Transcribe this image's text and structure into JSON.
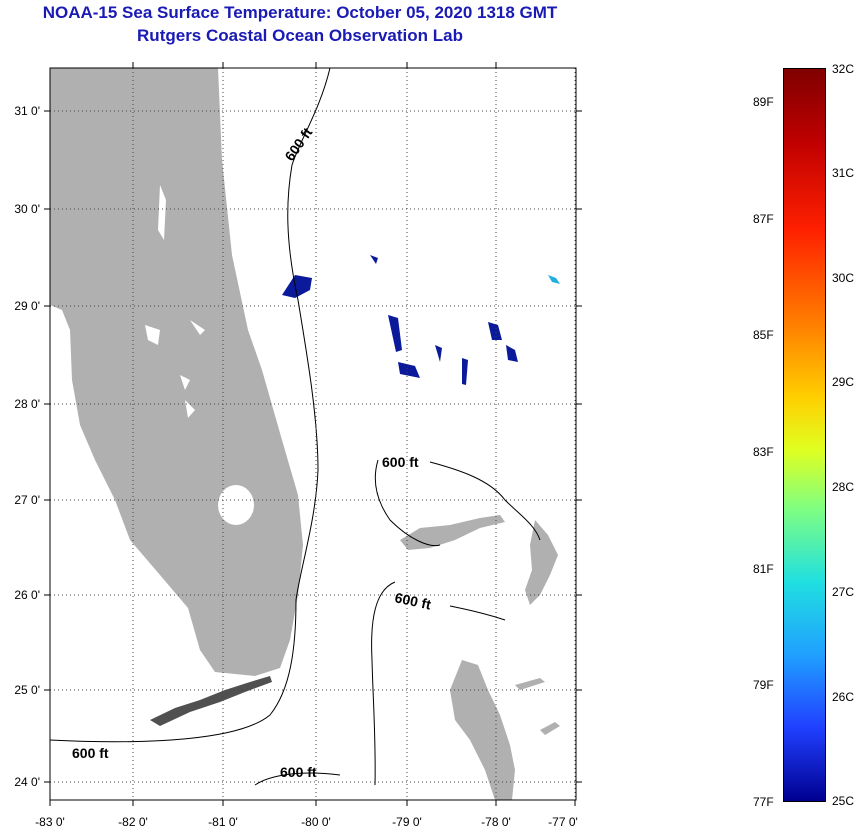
{
  "title": {
    "line1": "NOAA-15 Sea Surface Temperature:  October 05, 2020 1318 GMT",
    "line2": "Rutgers Coastal Ocean Observation Lab"
  },
  "axes": {
    "lat_labels": [
      "31 0'",
      "30 0'",
      "29 0'",
      "28 0'",
      "27 0'",
      "26 0'",
      "25 0'",
      "24 0'"
    ],
    "lon_labels": [
      "-83 0'",
      "-82 0'",
      "-81 0'",
      "-80 0'",
      "-79 0'",
      "-78 0'",
      "-77 0'"
    ]
  },
  "contour_labels": [
    "600 ft",
    "600 ft",
    "600 ft",
    "600 ft",
    "600 ft"
  ],
  "colorbar": {
    "celsius": [
      "32C",
      "31C",
      "30C",
      "29C",
      "28C",
      "27C",
      "26C",
      "25C"
    ],
    "fahrenheit": [
      "89F",
      "87F",
      "85F",
      "83F",
      "81F",
      "79F",
      "77F"
    ]
  },
  "colors": {
    "title": "#1a1ab4",
    "land": "#b0b0b0",
    "sst_cold": "#0a1a9a",
    "sst_cyan": "#20b0e0"
  }
}
